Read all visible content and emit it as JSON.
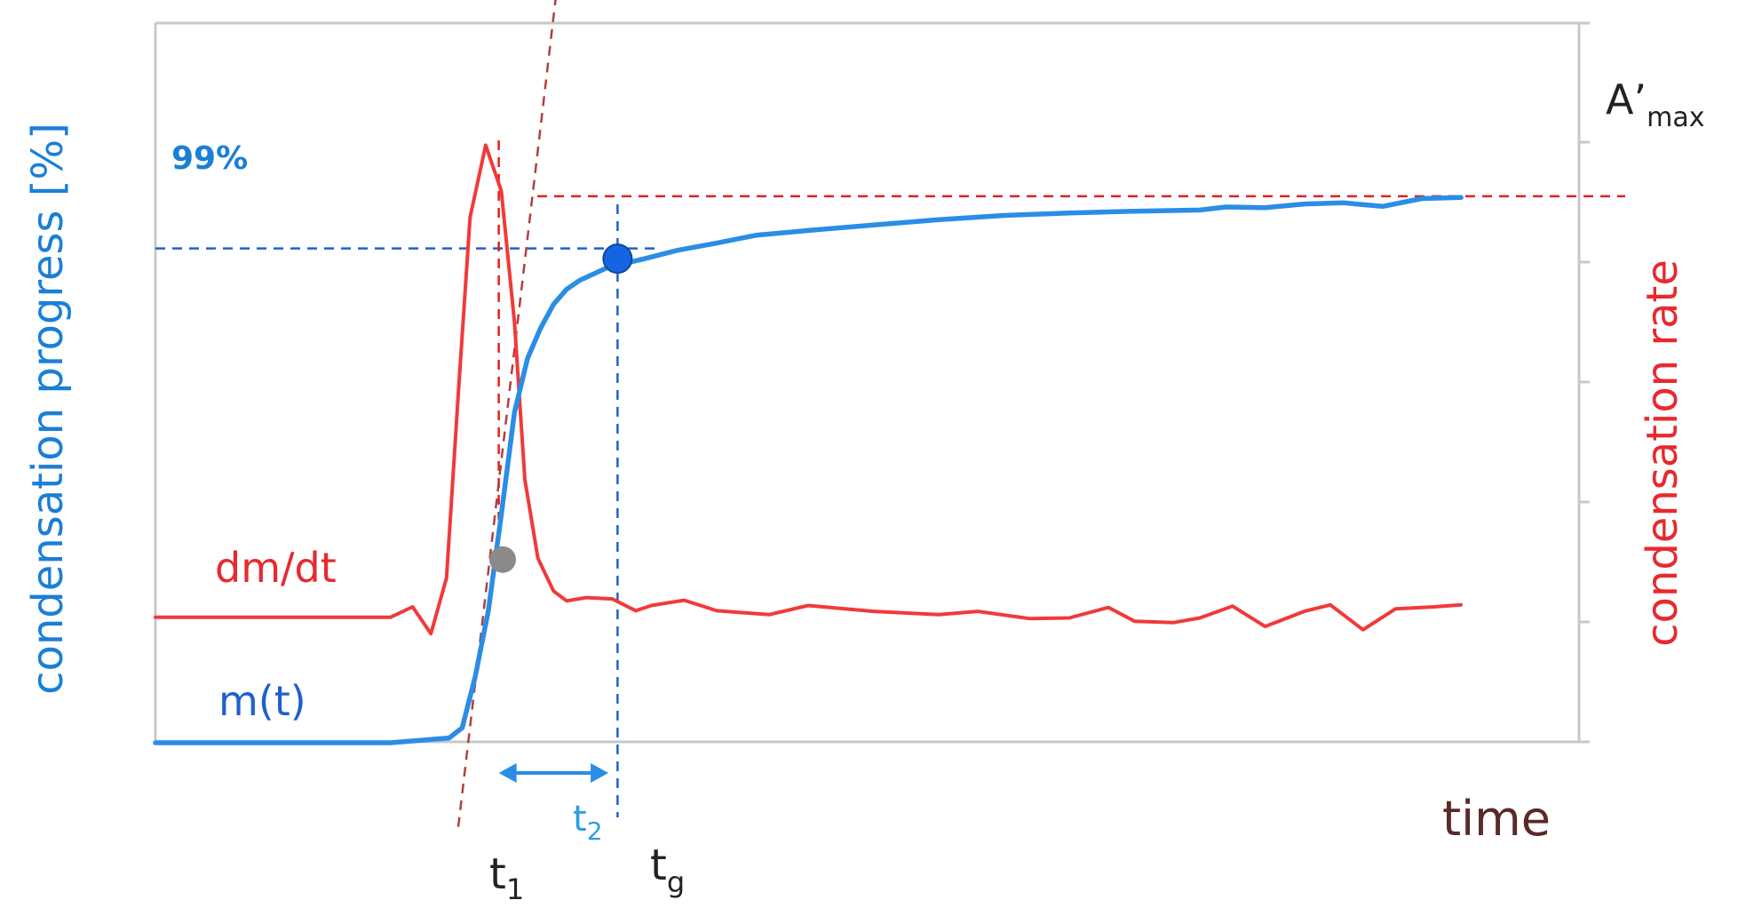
{
  "chart_data": {
    "type": "line",
    "title": "",
    "xlabel": "time",
    "ylabel_left": "condensation progress [%]",
    "ylabel_right": "condensation rate",
    "xlim": [
      0,
      100
    ],
    "ylim_left": [
      0,
      100
    ],
    "ylim_right": [
      0,
      100
    ],
    "grid": false,
    "series": [
      {
        "name": "m(t)",
        "axis": "left",
        "x": [
          0,
          18,
          22.5,
          23.5,
          24.5,
          25.5,
          26.5,
          27.5,
          28.5,
          29.5,
          30.5,
          31.5,
          32.5,
          33.5,
          34.5,
          35.5,
          37.5,
          40,
          43,
          46,
          50,
          55,
          60,
          65,
          70,
          75,
          80,
          82,
          85,
          88,
          91,
          94,
          97,
          100
        ],
        "values": [
          0,
          0,
          0.8,
          2.5,
          11,
          22,
          38,
          55,
          64,
          69,
          73,
          75.5,
          77,
          78,
          79,
          79.6,
          80.6,
          82,
          83.2,
          84.5,
          85.3,
          86.2,
          87.1,
          87.8,
          88.2,
          88.5,
          88.7,
          89.2,
          89.1,
          89.7,
          89.9,
          89.3,
          90.6,
          90.8
        ]
      },
      {
        "name": "dm/dt",
        "axis": "right",
        "x": [
          0,
          18,
          19.7,
          21.1,
          22.3,
          23.2,
          24.1,
          25.3,
          26.5,
          27.5,
          28.3,
          29.3,
          30.5,
          31.5,
          33,
          35,
          36.8,
          38,
          40.5,
          43,
          47,
          50,
          55,
          60,
          63,
          67,
          70,
          73,
          75,
          78,
          80,
          82.5,
          85,
          88,
          90,
          92.5,
          95,
          98,
          100
        ],
        "values": [
          19,
          19,
          20.6,
          16.5,
          25,
          53,
          80,
          91,
          84,
          64,
          40,
          28,
          23,
          21.5,
          22,
          21.8,
          20,
          20.8,
          21.6,
          20,
          19.4,
          20.8,
          19.9,
          19.4,
          19.9,
          18.8,
          18.9,
          20.5,
          18.4,
          18.2,
          18.9,
          20.7,
          17.6,
          19.9,
          20.9,
          17.1,
          20.3,
          20.6,
          20.9
        ]
      }
    ],
    "reference_lines": [
      {
        "type": "horizontal",
        "axis": "left",
        "value": 91,
        "style": "dashed",
        "color": "#e02020",
        "label": "A’max"
      },
      {
        "type": "horizontal",
        "axis": "left",
        "value": 82.3,
        "style": "dashed",
        "color": "#1f5fcf",
        "label": "99%"
      },
      {
        "type": "vertical",
        "x": 35.4,
        "style": "dashed",
        "color": "#1f5fcf",
        "label": "tg"
      },
      {
        "type": "vertical",
        "x": 26.3,
        "style": "dashed",
        "color": "#e02020"
      },
      {
        "type": "tangent",
        "from": [
          23.2,
          -14
        ],
        "to": [
          31.2,
          133.9
        ],
        "style": "dashed",
        "color": "#b04040",
        "label": "t1"
      }
    ],
    "markers": [
      {
        "name": "inflection-point",
        "x": 26.6,
        "y": 30.5,
        "color": "#8a8a8a"
      },
      {
        "name": "99-percent-point",
        "x": 35.4,
        "y": 80.6,
        "color": "#1565e0"
      }
    ],
    "annotations": {
      "pct_99": "99%",
      "a_max_main": "A’",
      "a_max_sub": "max",
      "t1_main": "t",
      "t1_sub": "1",
      "t2_main": "t",
      "t2_sub": "2",
      "tg_main": "t",
      "tg_sub": "g",
      "series_rate_label": "dm/dt",
      "series_progress_label": "m(t)"
    },
    "interval_arrow": {
      "label": "t2",
      "from_x": 26.3,
      "to_x": 34.7
    },
    "colors": {
      "progress": "#2a8de6",
      "rate": "#f03a3a",
      "progress_text": "#1a7fd6",
      "rate_text": "#e8292e",
      "time_label": "#5a2a28",
      "axis": "#c8c8c8"
    }
  }
}
